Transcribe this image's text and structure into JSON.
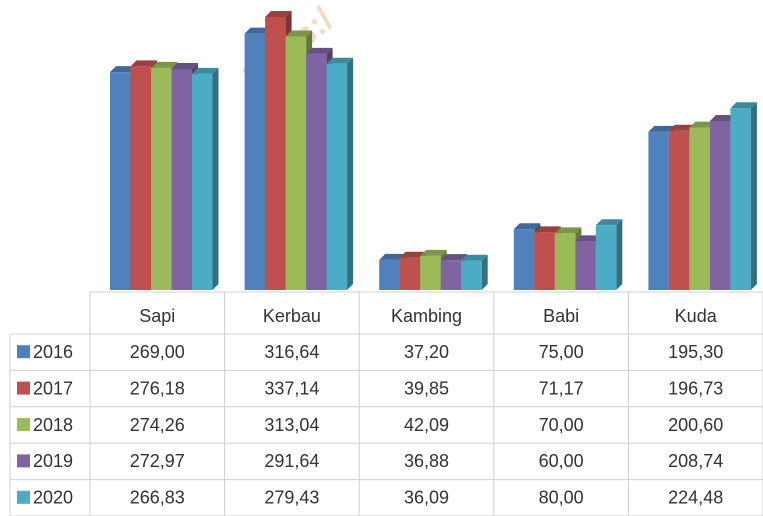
{
  "chart_data": {
    "type": "bar",
    "watermark": "https:/",
    "categories": [
      "Sapi",
      "Kerbau",
      "Kambing",
      "Babi",
      "Kuda"
    ],
    "series": [
      {
        "name": "2016",
        "color": "#4f81bd",
        "values": [
          269.0,
          316.64,
          37.2,
          75.0,
          195.3
        ],
        "value_labels": [
          "269,00",
          "316,64",
          "37,20",
          "75,00",
          "195,30"
        ]
      },
      {
        "name": "2017",
        "color": "#c0504d",
        "values": [
          276.18,
          337.14,
          39.85,
          71.17,
          196.73
        ],
        "value_labels": [
          "276,18",
          "337,14",
          "39,85",
          "71,17",
          "196,73"
        ]
      },
      {
        "name": "2018",
        "color": "#9bbb59",
        "values": [
          274.26,
          313.04,
          42.09,
          70.0,
          200.6
        ],
        "value_labels": [
          "274,26",
          "313,04",
          "42,09",
          "70,00",
          "200,60"
        ]
      },
      {
        "name": "2019",
        "color": "#8064a2",
        "values": [
          272.97,
          291.64,
          36.88,
          60.0,
          208.74
        ],
        "value_labels": [
          "272,97",
          "291,64",
          "36,88",
          "60,00",
          "208,74"
        ]
      },
      {
        "name": "2020",
        "color": "#4bacc6",
        "values": [
          266.83,
          279.43,
          36.09,
          80.0,
          224.48
        ],
        "value_labels": [
          "266,83",
          "279,43",
          "36,09",
          "80,00",
          "224,48"
        ]
      }
    ]
  }
}
